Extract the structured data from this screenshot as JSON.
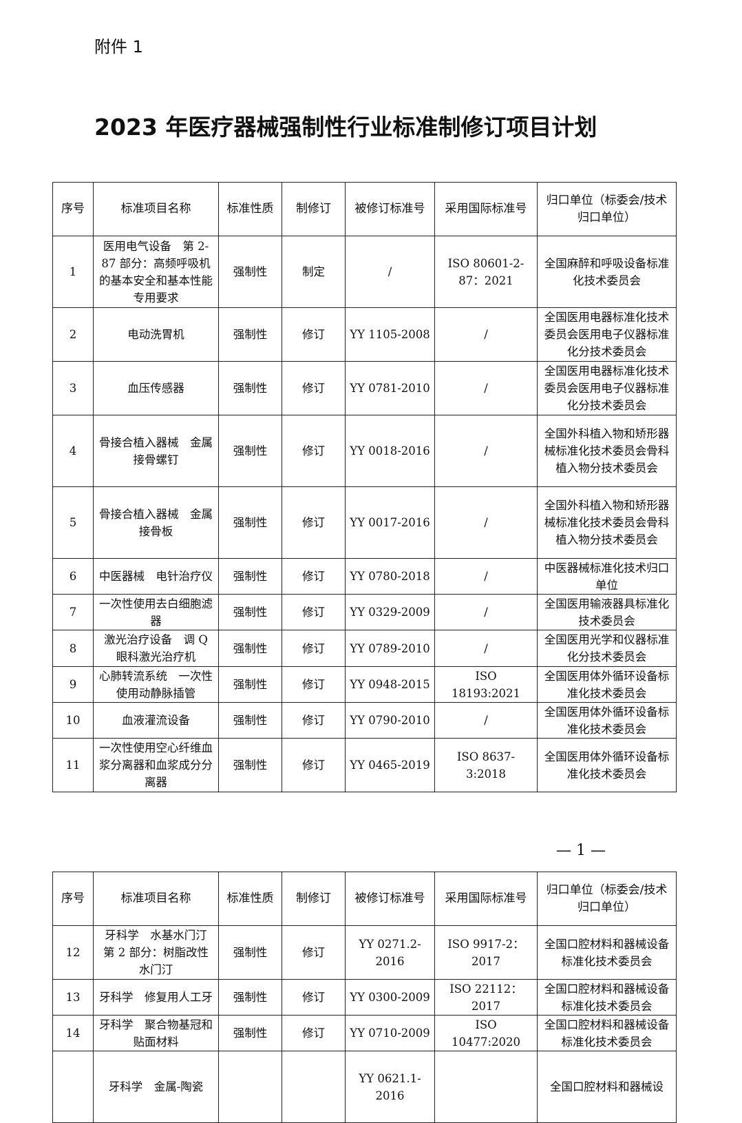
{
  "attachment_label": "附件 1",
  "title": "2023 年医疗器械强制性行业标准制修订项目计划",
  "headers": [
    "序号",
    "标准项目名称",
    "标准性质",
    "制修订",
    "被修订标准号",
    "采用国际标准号",
    "归口单位（标委会/技术归口单位）"
  ],
  "rows": [
    {
      "no": "1",
      "name": "医用电气设备　第 2-87 部分：高频呼吸机的基本安全和基本性能专用要求",
      "nature": "强制性",
      "type": "制定",
      "revised": "/",
      "intl": "ISO 80601-2-87：2021",
      "org": "全国麻醉和呼吸设备标准化技术委员会"
    },
    {
      "no": "2",
      "name": "电动洗胃机",
      "nature": "强制性",
      "type": "修订",
      "revised": "YY 1105-2008",
      "intl": "/",
      "org": "全国医用电器标准化技术委员会医用电子仪器标准化分技术委员会"
    },
    {
      "no": "3",
      "name": "血压传感器",
      "nature": "强制性",
      "type": "修订",
      "revised": "YY 0781-2010",
      "intl": "/",
      "org": "全国医用电器标准化技术委员会医用电子仪器标准化分技术委员会"
    },
    {
      "no": "4",
      "name": "骨接合植入器械　金属接骨螺钉",
      "nature": "强制性",
      "type": "修订",
      "revised": "YY 0018-2016",
      "intl": "/",
      "org": "全国外科植入物和矫形器械标准化技术委员会骨科植入物分技术委员会"
    },
    {
      "no": "5",
      "name": "骨接合植入器械　金属接骨板",
      "nature": "强制性",
      "type": "修订",
      "revised": "YY 0017-2016",
      "intl": "/",
      "org": "全国外科植入物和矫形器械标准化技术委员会骨科植入物分技术委员会"
    },
    {
      "no": "6",
      "name": "中医器械　电针治疗仪",
      "nature": "强制性",
      "type": "修订",
      "revised": "YY 0780-2018",
      "intl": "/",
      "org": "中医器械标准化技术归口单位"
    },
    {
      "no": "7",
      "name": "一次性使用去白细胞滤器",
      "nature": "强制性",
      "type": "修订",
      "revised": "YY 0329-2009",
      "intl": "/",
      "org": "全国医用输液器具标准化技术委员会"
    },
    {
      "no": "8",
      "name": "激光治疗设备　调 Q 眼科激光治疗机",
      "nature": "强制性",
      "type": "修订",
      "revised": "YY 0789-2010",
      "intl": "/",
      "org": "全国医用光学和仪器标准化分技术委员会"
    },
    {
      "no": "9",
      "name": "心肺转流系统　一次性使用动静脉插管",
      "nature": "强制性",
      "type": "修订",
      "revised": "YY 0948-2015",
      "intl": "ISO 18193:2021",
      "org": "全国医用体外循环设备标准化技术委员会"
    },
    {
      "no": "10",
      "name": "血液灌流设备",
      "nature": "强制性",
      "type": "修订",
      "revised": "YY 0790-2010",
      "intl": "/",
      "org": "全国医用体外循环设备标准化技术委员会"
    },
    {
      "no": "11",
      "name": "一次性使用空心纤维血浆分离器和血浆成分分离器",
      "nature": "强制性",
      "type": "修订",
      "revised": "YY 0465-2019",
      "intl": "ISO 8637-3:2018",
      "org": "全国医用体外循环设备标准化技术委员会"
    }
  ],
  "page_number": "— 1 —",
  "rows2": [
    {
      "no": "12",
      "name": "牙科学　水基水门汀　第 2 部分：树脂改性水门汀",
      "nature": "强制性",
      "type": "修订",
      "revised": "YY 0271.2-2016",
      "intl": "ISO 9917-2：2017",
      "org": "全国口腔材料和器械设备标准化技术委员会"
    },
    {
      "no": "13",
      "name": "牙科学　修复用人工牙",
      "nature": "强制性",
      "type": "修订",
      "revised": "YY 0300-2009",
      "intl": "ISO 22112：2017",
      "org": "全国口腔材料和器械设备标准化技术委员会"
    },
    {
      "no": "14",
      "name": "牙科学　聚合物基冠和贴面材料",
      "nature": "强制性",
      "type": "修订",
      "revised": "YY 0710-2009",
      "intl": "ISO 10477:2020",
      "org": "全国口腔材料和器械设备标准化技术委员会"
    },
    {
      "no": "",
      "name": "牙科学　金属-陶瓷",
      "nature": "",
      "type": "",
      "revised": "YY 0621.1-2016",
      "intl": "",
      "org": "全国口腔材料和器械设"
    }
  ]
}
